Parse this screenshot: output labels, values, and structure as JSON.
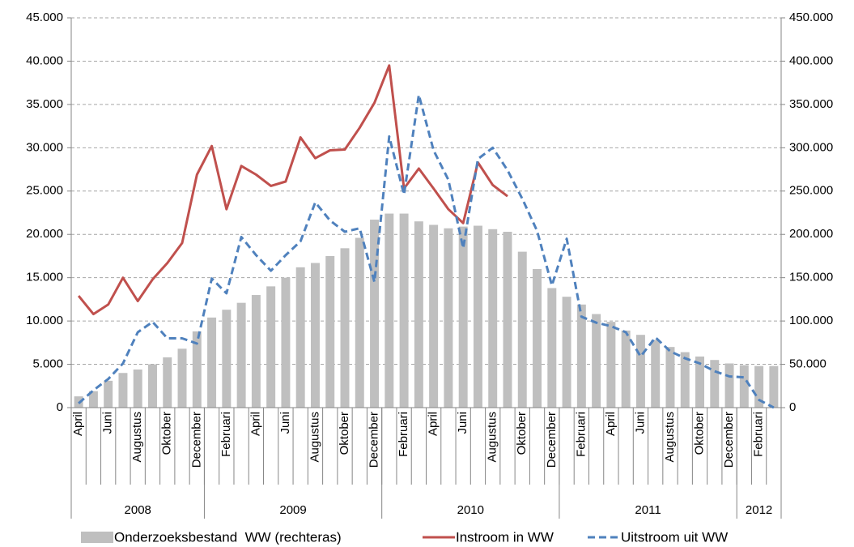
{
  "chart_data": {
    "type": "bar_line",
    "categories": [
      "April",
      null,
      "Juni",
      null,
      "Augustus",
      null,
      "Oktober",
      null,
      "December",
      null,
      "Februari",
      null,
      "April",
      null,
      "Juni",
      null,
      "Augustus",
      null,
      "Oktober",
      null,
      "December",
      null,
      "Februari",
      null,
      "April",
      null,
      "Juni",
      null,
      "Augustus",
      null,
      "Oktober",
      null,
      "December",
      null,
      "Februari",
      null,
      "April",
      null,
      "Juni",
      null,
      "Augustus",
      null,
      "Oktober",
      null,
      "December",
      null,
      "Februari",
      null
    ],
    "year_groups": [
      {
        "label": "2008",
        "count": 9
      },
      {
        "label": "2009",
        "count": 12
      },
      {
        "label": "2010",
        "count": 12
      },
      {
        "label": "2011",
        "count": 12
      },
      {
        "label": "2012",
        "count": 3
      }
    ],
    "series": [
      {
        "name": "Onderzoeksbestand  WW (rechteras)",
        "type": "bar",
        "axis": "y2",
        "color": "#bfbfbf",
        "values": [
          13000,
          19000,
          31000,
          40000,
          44000,
          50000,
          58000,
          68000,
          88000,
          104000,
          113000,
          121000,
          130000,
          140000,
          150000,
          162000,
          167000,
          175000,
          184000,
          196000,
          217000,
          224000,
          224000,
          215000,
          211000,
          207000,
          209000,
          210000,
          206000,
          203000,
          180000,
          160000,
          138000,
          128000,
          119000,
          108000,
          99000,
          89000,
          84000,
          78000,
          70000,
          64000,
          59000,
          55000,
          51000,
          49000,
          48000,
          48000
        ]
      },
      {
        "name": "Instroom in WW",
        "type": "line",
        "axis": "y",
        "color": "#c0504d",
        "dashed": false,
        "values": [
          12900,
          10800,
          11900,
          15000,
          12300,
          14800,
          16700,
          19000,
          26900,
          30200,
          22900,
          27900,
          26900,
          25600,
          26100,
          31200,
          28800,
          29700,
          29800,
          32300,
          35200,
          39500,
          25300,
          27600,
          25300,
          22900,
          21300,
          28300,
          25700,
          24400,
          null,
          null,
          null,
          null,
          null,
          null,
          null,
          null,
          null,
          null,
          null,
          null,
          null,
          null,
          null,
          null,
          null,
          null
        ]
      },
      {
        "name": "Uitstroom uit WW",
        "type": "line",
        "axis": "y2",
        "color": "#4f81bd",
        "dashed": true,
        "values": [
          5000,
          20000,
          33000,
          51000,
          87000,
          99000,
          80000,
          80000,
          74000,
          149000,
          132000,
          197000,
          176000,
          158000,
          176000,
          192000,
          237000,
          216000,
          203000,
          207000,
          145000,
          313000,
          246000,
          361000,
          297000,
          263000,
          184000,
          287000,
          300000,
          274000,
          241000,
          204000,
          141000,
          195000,
          105000,
          98000,
          94000,
          87000,
          59000,
          81000,
          65000,
          57000,
          51000,
          42000,
          36000,
          35000,
          9000,
          0
        ]
      }
    ],
    "ylim": [
      0,
      45000
    ],
    "yticks": [
      {
        "value": 0,
        "label": "0"
      },
      {
        "value": 5000,
        "label": "5.000"
      },
      {
        "value": 10000,
        "label": "10.000"
      },
      {
        "value": 15000,
        "label": "15.000"
      },
      {
        "value": 20000,
        "label": "20.000"
      },
      {
        "value": 25000,
        "label": "25.000"
      },
      {
        "value": 30000,
        "label": "30.000"
      },
      {
        "value": 35000,
        "label": "35.000"
      },
      {
        "value": 40000,
        "label": "40.000"
      },
      {
        "value": 45000,
        "label": "45.000"
      }
    ],
    "y2lim": [
      0,
      450000
    ],
    "y2ticks": [
      {
        "value": 0,
        "label": "0"
      },
      {
        "value": 50000,
        "label": "50.000"
      },
      {
        "value": 100000,
        "label": "100.000"
      },
      {
        "value": 150000,
        "label": "150.000"
      },
      {
        "value": 200000,
        "label": "200.000"
      },
      {
        "value": 250000,
        "label": "250.000"
      },
      {
        "value": 300000,
        "label": "300.000"
      },
      {
        "value": 350000,
        "label": "350.000"
      },
      {
        "value": 400000,
        "label": "400.000"
      },
      {
        "value": 450000,
        "label": "450.000"
      }
    ],
    "grid": true
  }
}
